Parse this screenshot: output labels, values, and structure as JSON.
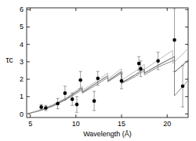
{
  "chart_data": {
    "type": "scatter",
    "x_label": "Wavelength (Å)",
    "y_label": "τc",
    "xlim": [
      4.6,
      22.3
    ],
    "ylim": [
      -0.2,
      6.1
    ],
    "xticks": [
      5,
      10,
      15,
      20
    ],
    "yticks": [
      0,
      1,
      2,
      3,
      4,
      5,
      6
    ],
    "grid": false,
    "series": [
      {
        "type": "line",
        "color": "#555555",
        "line_style": "solid",
        "x": [
          4.6,
          6,
          7.5,
          9,
          10.7,
          10.7,
          12,
          13.5,
          13.5,
          15,
          15,
          16.5,
          17.5,
          17.5,
          19,
          20.8,
          20.8,
          22,
          22.3
        ],
        "values": [
          0,
          0.2,
          0.5,
          0.9,
          1.5,
          1.25,
          1.7,
          2.2,
          1.9,
          2.45,
          1.8,
          2.25,
          2.6,
          2.35,
          2.8,
          3.3,
          2.4,
          2.95,
          3.1
        ]
      },
      {
        "type": "line",
        "color": "#bbbbbb",
        "line_style": "solid",
        "x": [
          4.6,
          6,
          7.5,
          9,
          10.7,
          10.7,
          12,
          13.5,
          13.5,
          15,
          15,
          16.5,
          17.5,
          17.5,
          19,
          20.6,
          20.6,
          22,
          22.3
        ],
        "values": [
          0,
          0.22,
          0.55,
          0.95,
          1.6,
          1.35,
          1.8,
          2.35,
          2.0,
          2.6,
          1.95,
          2.45,
          2.85,
          2.55,
          3.1,
          3.65,
          2.9,
          3.6,
          3.8
        ]
      },
      {
        "type": "line",
        "color": "#888888",
        "line_style": "solid",
        "x": [
          4.6,
          6,
          7.5,
          9,
          10.7,
          10.7,
          12,
          13.5,
          13.5,
          15,
          15,
          16.5,
          17.5,
          17.5,
          19,
          20.8,
          20.8,
          22,
          22.3
        ],
        "values": [
          0,
          0.18,
          0.45,
          0.85,
          1.4,
          1.2,
          1.6,
          2.1,
          1.85,
          2.35,
          1.75,
          2.15,
          2.5,
          2.25,
          2.7,
          3.1,
          1.05,
          1.75,
          1.95
        ]
      },
      {
        "type": "scatter",
        "color": "#000000",
        "marker": "circle",
        "x": [
          6.2,
          6.7,
          8.0,
          8.8,
          9.6,
          10.1,
          10.5,
          12.0,
          12.4,
          15.0,
          16.9,
          17.1,
          19.0,
          20.8,
          21.7
        ],
        "values": [
          0.4,
          0.35,
          0.6,
          1.2,
          0.85,
          0.55,
          1.95,
          0.75,
          2.05,
          1.9,
          2.9,
          2.6,
          3.05,
          4.25,
          1.6
        ],
        "errors": [
          0.15,
          0.15,
          0.3,
          0.4,
          0.35,
          0.45,
          0.5,
          0.55,
          0.4,
          0.45,
          0.4,
          0.45,
          0.5,
          1.8,
          1.2
        ]
      }
    ]
  }
}
